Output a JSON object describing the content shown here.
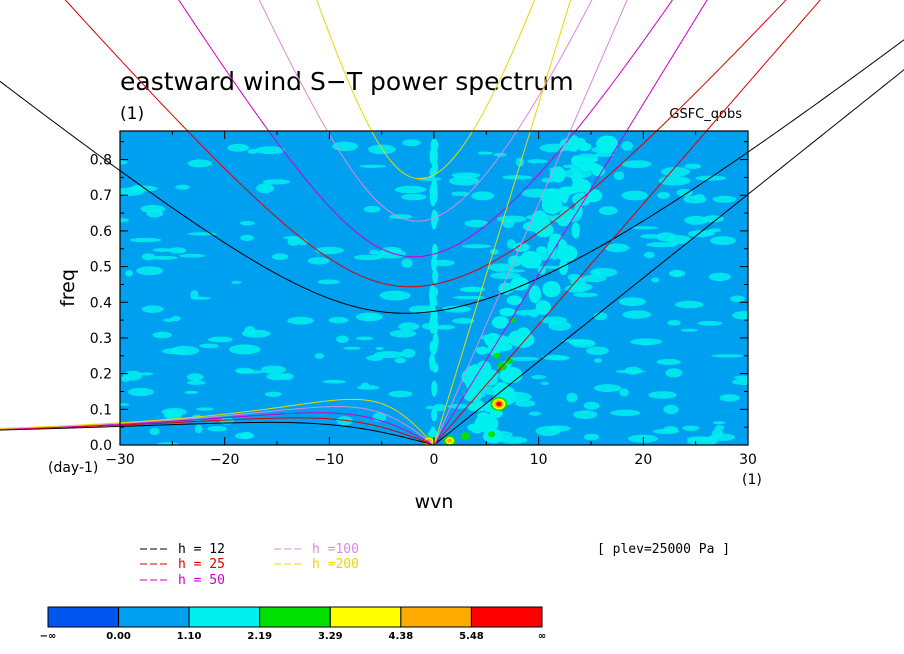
{
  "chart_data": {
    "type": "heatmap",
    "title": "eastward wind S−T power spectrum",
    "title_units": "(1)",
    "source_label": "GSFC_qobs",
    "xlabel": "wvn",
    "ylabel": "freq",
    "x_units": "(1)",
    "y_units": "(day-1)",
    "xlim": [
      -30,
      30
    ],
    "ylim": [
      0,
      0.88
    ],
    "x_ticks": [
      -30,
      -20,
      -10,
      0,
      10,
      20,
      30
    ],
    "y_ticks": [
      0.0,
      0.1,
      0.2,
      0.3,
      0.4,
      0.5,
      0.6,
      0.7,
      0.8
    ],
    "annotation": "[ plev=25000 Pa ]",
    "dispersion_curves": [
      {
        "label": "h = 12",
        "h": 12,
        "color": "#000000"
      },
      {
        "label": "h = 25",
        "h": 25,
        "color": "#dd0000"
      },
      {
        "label": "h = 50",
        "h": 50,
        "color": "#cc00cc"
      },
      {
        "label": "h =100",
        "h": 100,
        "color": "#dd88dd"
      },
      {
        "label": "h =200",
        "h": 200,
        "color": "#e8d800"
      }
    ],
    "colorbar": {
      "boundaries": [
        "−∞",
        "0.00",
        "1.10",
        "2.19",
        "3.29",
        "4.38",
        "5.48",
        "∞"
      ],
      "colors": [
        "#0055ee",
        "#00a0f0",
        "#00f0f0",
        "#00e000",
        "#ffff00",
        "#ffaa00",
        "#ff0000"
      ]
    }
  }
}
